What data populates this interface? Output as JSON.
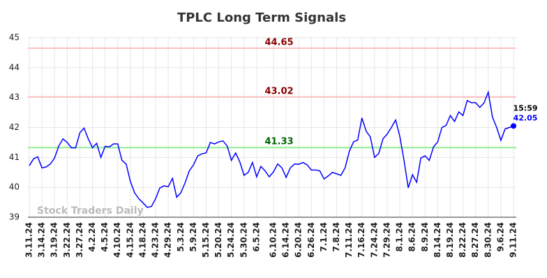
{
  "chart_data": {
    "type": "line",
    "title": "TPLC Long Term Signals",
    "categories": [
      "3.11.24",
      null,
      null,
      "3.14.24",
      null,
      null,
      "3.19.24",
      null,
      null,
      "3.22.24",
      null,
      null,
      "3.27.24",
      null,
      null,
      "4.2.24",
      null,
      null,
      "4.5.24",
      null,
      null,
      "4.10.24",
      null,
      null,
      "4.15.24",
      null,
      null,
      "4.18.24",
      null,
      null,
      "4.23.24",
      null,
      null,
      "4.29.24",
      null,
      null,
      "5.3.24",
      null,
      null,
      "5.9.24",
      null,
      null,
      "5.15.24",
      null,
      null,
      "5.20.24",
      null,
      null,
      "5.24.24",
      null,
      null,
      "5.30.24",
      null,
      null,
      "6.5.24",
      null,
      null,
      null,
      "6.10.24",
      null,
      null,
      "6.14.24",
      null,
      null,
      "6.20.24",
      null,
      null,
      "6.26.24",
      null,
      null,
      "7.1.24",
      null,
      null,
      "7.8.24",
      null,
      null,
      "7.11.24",
      null,
      null,
      "7.16.24",
      null,
      null,
      "7.24.24",
      null,
      null,
      "7.29.24",
      null,
      null,
      "8.1.24",
      null,
      null,
      "8.6.24",
      null,
      null,
      "8.9.24",
      null,
      null,
      "8.14.24",
      null,
      null,
      "8.19.24",
      null,
      null,
      "8.22.24",
      null,
      null,
      "8.27.24",
      null,
      null,
      "8.30.24",
      null,
      null,
      "9.6.24",
      null,
      null,
      "9.11.24"
    ],
    "series": [
      {
        "color": "#0000ff",
        "values": [
          40.72,
          40.95,
          41.02,
          40.65,
          40.68,
          40.78,
          40.98,
          41.38,
          41.62,
          41.5,
          41.32,
          41.32,
          41.82,
          41.98,
          41.62,
          41.32,
          41.47,
          41.0,
          41.37,
          41.35,
          41.45,
          41.45,
          40.9,
          40.78,
          40.2,
          39.82,
          39.62,
          39.48,
          39.33,
          39.36,
          39.62,
          39.98,
          40.05,
          40.02,
          40.3,
          39.67,
          39.82,
          40.15,
          40.55,
          40.75,
          41.05,
          41.12,
          41.15,
          41.5,
          41.45,
          41.52,
          41.55,
          41.38,
          40.9,
          41.15,
          40.85,
          40.4,
          40.5,
          40.83,
          40.35,
          40.7,
          40.55,
          40.35,
          40.52,
          40.78,
          40.65,
          40.33,
          40.65,
          40.78,
          40.77,
          40.83,
          40.75,
          40.58,
          40.58,
          40.55,
          40.28,
          40.38,
          40.5,
          40.45,
          40.4,
          40.65,
          41.2,
          41.52,
          41.58,
          42.32,
          41.88,
          41.68,
          41.0,
          41.13,
          41.62,
          41.78,
          42.0,
          42.25,
          41.7,
          40.9,
          39.98,
          40.42,
          40.17,
          40.98,
          41.05,
          40.9,
          41.35,
          41.52,
          42.0,
          42.07,
          42.4,
          42.2,
          42.52,
          42.4,
          42.9,
          42.83,
          42.83,
          42.67,
          42.82,
          43.18,
          42.35,
          42.0,
          41.57,
          41.95,
          42.0,
          42.05
        ]
      }
    ],
    "reference_lines": [
      {
        "value": 44.65,
        "color": "#ffc0c0",
        "label_color": "#8b0000"
      },
      {
        "value": 43.02,
        "color": "#ffc0c0",
        "label_color": "#8b0000"
      },
      {
        "value": 41.33,
        "color": "#90ee90",
        "label_color": "#006400"
      }
    ],
    "last_time": "15:59",
    "watermark": "Stock Traders Daily",
    "ylim": [
      39,
      45
    ],
    "yticks": [
      39,
      40,
      41,
      42,
      43,
      44,
      45
    ],
    "grid": true
  }
}
